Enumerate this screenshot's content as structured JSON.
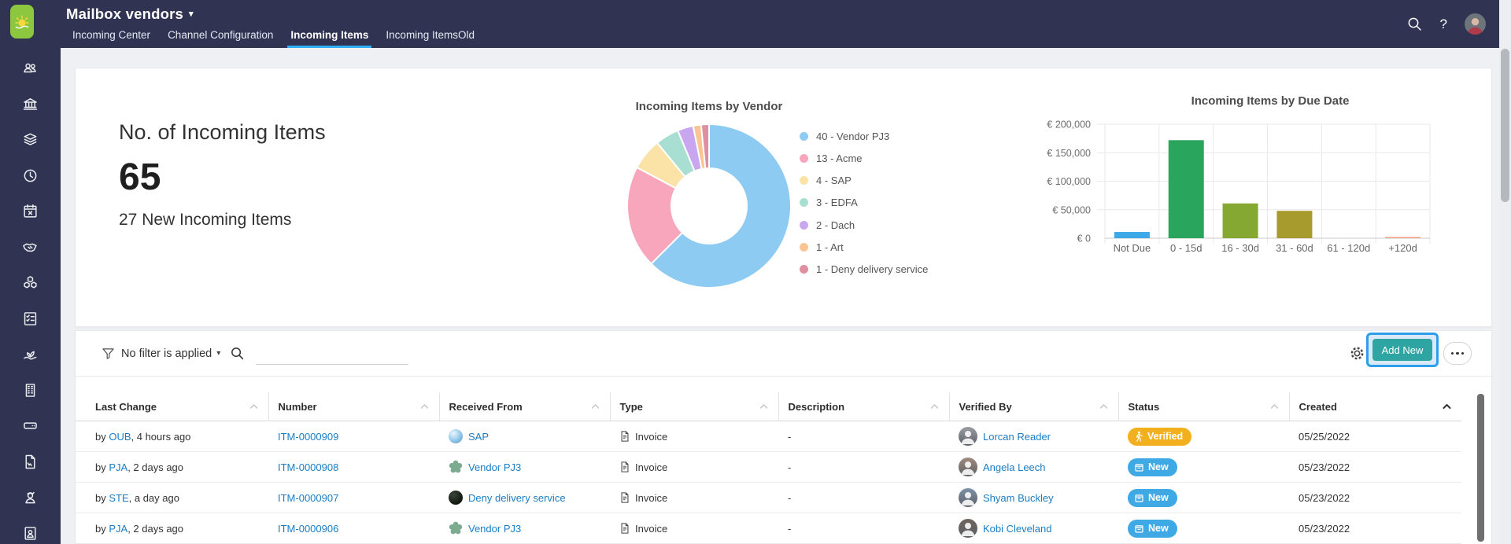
{
  "app": {
    "title": "Mailbox vendors",
    "title_caret": "▾",
    "help_glyph": "?",
    "logo_icon": "sunrise-logo",
    "tabs": [
      {
        "label": "Incoming Center",
        "active": false
      },
      {
        "label": "Channel Configuration",
        "active": false
      },
      {
        "label": "Incoming Items",
        "active": true
      },
      {
        "label": "Incoming ItemsOld",
        "active": false
      }
    ],
    "topbar_icons": [
      "search-icon",
      "help-icon",
      "user-avatar"
    ]
  },
  "sidebar": {
    "icons": [
      "people-icon",
      "bank-icon",
      "layers-icon",
      "clock-icon",
      "calendar-icon",
      "handshake-icon",
      "cubes-icon",
      "checklist-icon",
      "sprout-icon",
      "building-icon",
      "storage-icon",
      "document-icon",
      "employee-icon",
      "address-book-icon"
    ]
  },
  "chart_data": [
    {
      "type": "metric",
      "title": "No. of Incoming Items",
      "value": "65",
      "subtitle": "27 New Incoming Items"
    },
    {
      "type": "pie",
      "subtype": "donut",
      "title": "Incoming Items by Vendor",
      "legend_position": "right",
      "slices": [
        {
          "label": "40 - Vendor PJ3",
          "value": 40,
          "color": "#8ecbf2"
        },
        {
          "label": "13 - Acme",
          "value": 13,
          "color": "#f7a6bb"
        },
        {
          "label": "4 - SAP",
          "value": 4,
          "color": "#fbe3a7"
        },
        {
          "label": "3 - EDFA",
          "value": 3,
          "color": "#a8dfd2"
        },
        {
          "label": "2 - Dach",
          "value": 2,
          "color": "#c9a7f0"
        },
        {
          "label": "1 - Art",
          "value": 1,
          "color": "#fac493"
        },
        {
          "label": "1 - Deny delivery service",
          "value": 1,
          "color": "#e08fa0"
        }
      ]
    },
    {
      "type": "bar",
      "title": "Incoming Items by Due Date",
      "categories": [
        "Not Due",
        "0 - 15d",
        "16 - 30d",
        "31 - 60d",
        "61 - 120d",
        "+120d"
      ],
      "values": [
        11000,
        172000,
        61000,
        48000,
        0,
        1000
      ],
      "colors": [
        "#3ea9e8",
        "#2aa55e",
        "#85a832",
        "#a89b2d",
        "#b0b0b0",
        "#f0a080"
      ],
      "ylim": [
        0,
        200000
      ],
      "ytick_step": 50000,
      "ytick_labels": [
        "€ 0",
        "€ 50,000",
        "€ 100,000",
        "€ 150,000",
        "€ 200,000"
      ],
      "grid": true,
      "legend_position": "none"
    }
  ],
  "filter_bar": {
    "filter_label": "No filter is applied",
    "filter_caret": "▾",
    "search_value": "",
    "add_new_label": "Add New",
    "icons": [
      "filter-funnel-icon",
      "search-icon",
      "settings-gear-icon",
      "more-actions-icon"
    ]
  },
  "table": {
    "columns": [
      {
        "label": "Last Change",
        "sorted": false
      },
      {
        "label": "Number",
        "sorted": false
      },
      {
        "label": "Received From",
        "sorted": false
      },
      {
        "label": "Type",
        "sorted": false
      },
      {
        "label": "Description",
        "sorted": false
      },
      {
        "label": "Verified By",
        "sorted": false
      },
      {
        "label": "Status",
        "sorted": false
      },
      {
        "label": "Created",
        "sorted": true
      }
    ],
    "rows": [
      {
        "last_change": {
          "text_before": "by ",
          "user_link": "OUB",
          "text_after": ", 4 hours ago"
        },
        "number": "ITM-0000909",
        "received_from": {
          "name": "SAP",
          "logo": "sap-sphere-logo"
        },
        "type": {
          "icon": "invoice-document-icon",
          "label": "Invoice"
        },
        "description": "-",
        "verified_by": {
          "name": "Lorcan Reader",
          "avatar": "person-avatar"
        },
        "status": {
          "label": "Verified",
          "color": "#f2b01e",
          "icon": "verified-walking-icon"
        },
        "created": "05/25/2022"
      },
      {
        "last_change": {
          "text_before": "by ",
          "user_link": "PJA",
          "text_after": ", 2 days ago"
        },
        "number": "ITM-0000908",
        "received_from": {
          "name": "Vendor PJ3",
          "logo": "clover-logo"
        },
        "type": {
          "icon": "invoice-document-icon",
          "label": "Invoice"
        },
        "description": "-",
        "verified_by": {
          "name": "Angela Leech",
          "avatar": "person-avatar"
        },
        "status": {
          "label": "New",
          "color": "#3fa9e6",
          "icon": "new-box-icon"
        },
        "created": "05/23/2022"
      },
      {
        "last_change": {
          "text_before": "by ",
          "user_link": "STE",
          "text_after": ", a day ago"
        },
        "number": "ITM-0000907",
        "received_from": {
          "name": "Deny delivery service",
          "logo": "dark-sphere-logo"
        },
        "type": {
          "icon": "invoice-document-icon",
          "label": "Invoice"
        },
        "description": "-",
        "verified_by": {
          "name": "Shyam Buckley",
          "avatar": "person-avatar"
        },
        "status": {
          "label": "New",
          "color": "#3fa9e6",
          "icon": "new-box-icon"
        },
        "created": "05/23/2022"
      },
      {
        "last_change": {
          "text_before": "by ",
          "user_link": "PJA",
          "text_after": ", 2 days ago"
        },
        "number": "ITM-0000906",
        "received_from": {
          "name": "Vendor PJ3",
          "logo": "clover-logo"
        },
        "type": {
          "icon": "invoice-document-icon",
          "label": "Invoice"
        },
        "description": "-",
        "verified_by": {
          "name": "Kobi Cleveland",
          "avatar": "person-avatar"
        },
        "status": {
          "label": "New",
          "color": "#3fa9e6",
          "icon": "new-box-icon"
        },
        "created": "05/23/2022"
      }
    ]
  },
  "colors": {
    "header_bg": "#303452",
    "accent_teal": "#2ea5a2",
    "link_blue": "#1a7dc4",
    "tab_underline": "#2fb0f2",
    "highlight_border": "#2e9ee9",
    "highlight_bg": "#d9e9f7",
    "status_verified": "#f2b01e",
    "status_new": "#3fa9e6",
    "logo_green": "#8dc63f"
  }
}
